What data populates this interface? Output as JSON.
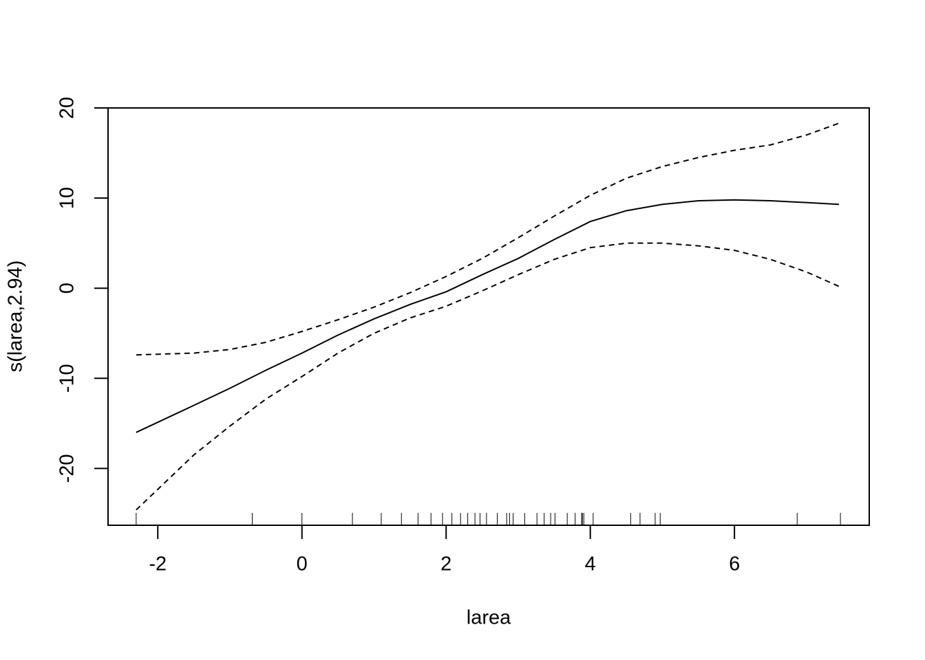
{
  "chart_data": {
    "type": "line",
    "xlabel": "larea",
    "ylabel": "s(larea,2.94)",
    "x": [
      -2.3,
      -1.5,
      -1,
      -0.5,
      0,
      0.5,
      1,
      1.5,
      2,
      2.5,
      3,
      3.5,
      4,
      4.5,
      5,
      5.5,
      6,
      6.5,
      7,
      7.45
    ],
    "series": [
      {
        "color": "#000000",
        "linestyle": "solid",
        "values": [
          -16.0,
          -13.0,
          -11.1,
          -9.1,
          -7.2,
          -5.2,
          -3.4,
          -1.8,
          -0.4,
          1.5,
          3.3,
          5.4,
          7.4,
          8.6,
          9.3,
          9.7,
          9.8,
          9.7,
          9.5,
          9.3
        ]
      },
      {
        "color": "#000000",
        "linestyle": "dashed",
        "values": [
          -7.4,
          -7.2,
          -6.8,
          -6.0,
          -4.8,
          -3.5,
          -2.1,
          -0.5,
          1.3,
          3.3,
          5.6,
          8.0,
          10.3,
          12.2,
          13.5,
          14.5,
          15.3,
          15.9,
          17.0,
          18.3
        ]
      },
      {
        "color": "#000000",
        "linestyle": "dashed",
        "values": [
          -24.6,
          -18.5,
          -15.3,
          -12.3,
          -9.8,
          -7.2,
          -5.0,
          -3.3,
          -2.0,
          -0.3,
          1.5,
          3.2,
          4.5,
          5.0,
          5.0,
          4.7,
          4.2,
          3.2,
          1.8,
          0.2
        ]
      }
    ],
    "rug": [
      -2.3,
      -0.69,
      0,
      0.7,
      1.1,
      1.38,
      1.61,
      1.79,
      1.95,
      2.08,
      2.2,
      2.3,
      2.4,
      2.47,
      2.56,
      2.71,
      2.84,
      2.88,
      2.93,
      3.09,
      3.26,
      3.36,
      3.45,
      3.51,
      3.68,
      3.79,
      3.88,
      3.89,
      3.91,
      4.04,
      4.56,
      4.69,
      4.9,
      4.97,
      6.87,
      7.47
    ],
    "xlim": [
      -2.69,
      7.87
    ],
    "ylim": [
      -26.3,
      20
    ],
    "xticks": [
      -2,
      0,
      2,
      4,
      6
    ],
    "yticks": [
      -20,
      -10,
      0,
      10,
      20
    ]
  }
}
